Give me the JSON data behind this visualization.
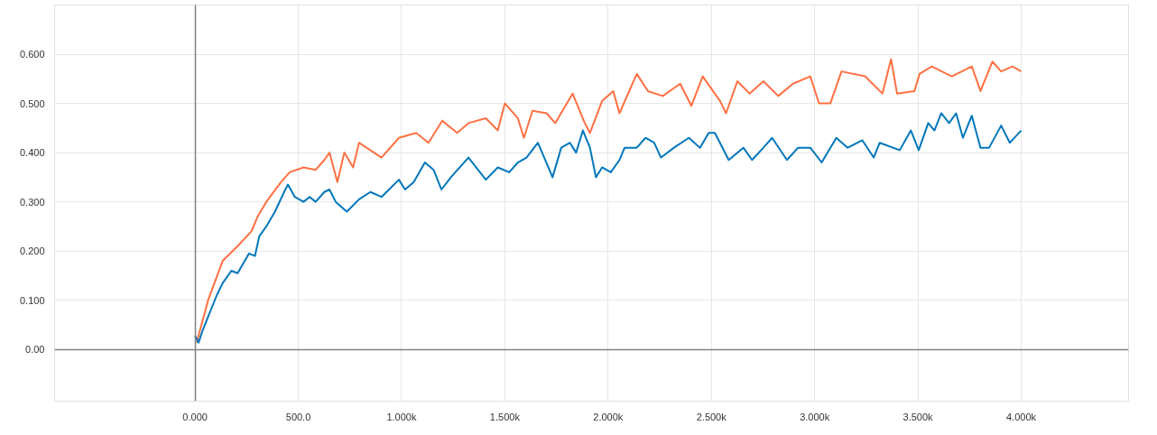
{
  "chart_data": {
    "type": "line",
    "xlim": [
      -680,
      4520
    ],
    "ylim": [
      -0.105,
      0.7
    ],
    "xticks": [
      {
        "value": 0,
        "label": "0.000"
      },
      {
        "value": 500,
        "label": "500.0"
      },
      {
        "value": 1000,
        "label": "1.000k"
      },
      {
        "value": 1500,
        "label": "1.500k"
      },
      {
        "value": 2000,
        "label": "2.000k"
      },
      {
        "value": 2500,
        "label": "2.500k"
      },
      {
        "value": 3000,
        "label": "3.000k"
      },
      {
        "value": 3500,
        "label": "3.500k"
      },
      {
        "value": 4000,
        "label": "4.000k"
      }
    ],
    "yticks": [
      {
        "value": 0,
        "label": "0.00"
      },
      {
        "value": 0.1,
        "label": "0.100"
      },
      {
        "value": 0.2,
        "label": "0.200"
      },
      {
        "value": 0.3,
        "label": "0.300"
      },
      {
        "value": 0.4,
        "label": "0.400"
      },
      {
        "value": 0.5,
        "label": "0.500"
      },
      {
        "value": 0.6,
        "label": "0.600"
      }
    ],
    "grid": true,
    "marker": "none",
    "line_style": "solid",
    "series": [
      {
        "color": "#ff7043",
        "x": [
          8,
          63,
          134,
          206,
          273,
          303,
          345,
          416,
          458,
          525,
          584,
          626,
          651,
          689,
          723,
          765,
          794,
          903,
          987,
          1071,
          1130,
          1197,
          1269,
          1324,
          1408,
          1466,
          1500,
          1563,
          1592,
          1634,
          1702,
          1744,
          1828,
          1887,
          1912,
          1971,
          2025,
          2055,
          2139,
          2193,
          2265,
          2349,
          2403,
          2458,
          2542,
          2571,
          2626,
          2685,
          2752,
          2824,
          2895,
          2979,
          3021,
          3076,
          3130,
          3244,
          3328,
          3370,
          3399,
          3483,
          3508,
          3567,
          3664,
          3761,
          3803,
          3861,
          3903,
          3958,
          4000
        ],
        "values": [
          0.014,
          0.1,
          0.18,
          0.21,
          0.24,
          0.27,
          0.3,
          0.34,
          0.36,
          0.37,
          0.365,
          0.385,
          0.4,
          0.34,
          0.4,
          0.37,
          0.42,
          0.39,
          0.43,
          0.44,
          0.42,
          0.465,
          0.44,
          0.46,
          0.47,
          0.445,
          0.5,
          0.47,
          0.43,
          0.485,
          0.48,
          0.46,
          0.52,
          0.46,
          0.44,
          0.505,
          0.525,
          0.48,
          0.56,
          0.525,
          0.515,
          0.54,
          0.495,
          0.555,
          0.505,
          0.48,
          0.545,
          0.52,
          0.545,
          0.515,
          0.54,
          0.555,
          0.5,
          0.5,
          0.565,
          0.555,
          0.52,
          0.59,
          0.52,
          0.525,
          0.56,
          0.575,
          0.555,
          0.575,
          0.525,
          0.585,
          0.565,
          0.575,
          0.565
        ]
      },
      {
        "color": "#0077bb",
        "x": [
          0,
          17,
          38,
          105,
          134,
          176,
          206,
          261,
          290,
          311,
          345,
          387,
          437,
          450,
          483,
          525,
          555,
          584,
          626,
          651,
          681,
          735,
          794,
          849,
          903,
          987,
          1017,
          1059,
          1113,
          1155,
          1193,
          1239,
          1324,
          1408,
          1466,
          1521,
          1563,
          1605,
          1660,
          1731,
          1773,
          1815,
          1845,
          1878,
          1912,
          1941,
          1971,
          2013,
          2055,
          2080,
          2139,
          2181,
          2223,
          2256,
          2319,
          2391,
          2445,
          2487,
          2517,
          2584,
          2655,
          2697,
          2752,
          2794,
          2866,
          2920,
          2979,
          3034,
          3105,
          3160,
          3231,
          3286,
          3315,
          3412,
          3466,
          3504,
          3550,
          3580,
          3613,
          3651,
          3685,
          3718,
          3761,
          3803,
          3845,
          3903,
          3945,
          4000
        ],
        "values": [
          0.028,
          0.014,
          0.04,
          0.11,
          0.135,
          0.16,
          0.155,
          0.195,
          0.19,
          0.23,
          0.25,
          0.28,
          0.325,
          0.335,
          0.31,
          0.3,
          0.31,
          0.3,
          0.32,
          0.325,
          0.3,
          0.28,
          0.305,
          0.32,
          0.31,
          0.345,
          0.325,
          0.34,
          0.38,
          0.365,
          0.325,
          0.35,
          0.39,
          0.345,
          0.37,
          0.36,
          0.38,
          0.39,
          0.42,
          0.35,
          0.41,
          0.42,
          0.4,
          0.445,
          0.41,
          0.35,
          0.37,
          0.36,
          0.385,
          0.41,
          0.41,
          0.43,
          0.42,
          0.39,
          0.41,
          0.43,
          0.41,
          0.44,
          0.44,
          0.385,
          0.41,
          0.385,
          0.41,
          0.43,
          0.385,
          0.41,
          0.41,
          0.38,
          0.43,
          0.41,
          0.425,
          0.39,
          0.42,
          0.405,
          0.445,
          0.405,
          0.46,
          0.445,
          0.48,
          0.46,
          0.48,
          0.43,
          0.475,
          0.41,
          0.41,
          0.455,
          0.42,
          0.445
        ]
      }
    ]
  }
}
